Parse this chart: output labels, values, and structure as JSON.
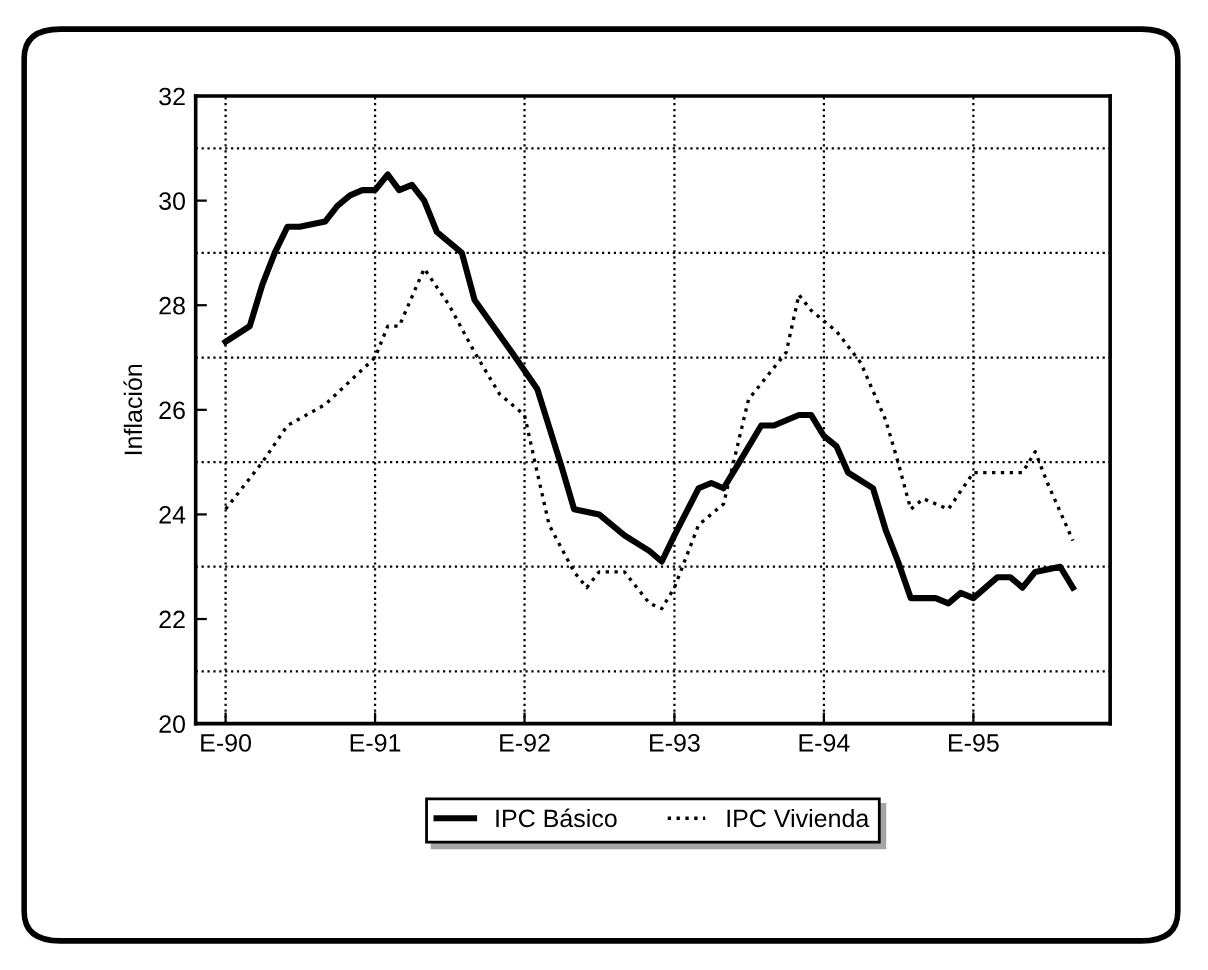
{
  "chart_data": {
    "type": "line",
    "ylabel": "Inflación",
    "xlim": [
      "1989-10-20",
      "1995-12-01"
    ],
    "ylim": [
      20,
      32
    ],
    "yticks": [
      20,
      22,
      24,
      26,
      28,
      30,
      32
    ],
    "xticks": [
      {
        "value": "1990-01",
        "label": "E-90"
      },
      {
        "value": "1991-01",
        "label": "E-91"
      },
      {
        "value": "1992-01",
        "label": "E-92"
      },
      {
        "value": "1993-01",
        "label": "E-93"
      },
      {
        "value": "1994-01",
        "label": "E-94"
      },
      {
        "value": "1995-01",
        "label": "E-95"
      }
    ],
    "grid": "x",
    "legend": "bottom",
    "ref_lines": [
      {
        "axis": "y",
        "value": 21,
        "line_style": "dotted",
        "color": "#000000"
      },
      {
        "axis": "y",
        "value": 23,
        "line_style": "dotted",
        "color": "#000000"
      },
      {
        "axis": "y",
        "value": 25,
        "line_style": "dotted",
        "color": "#000000"
      },
      {
        "axis": "y",
        "value": 27,
        "line_style": "dotted",
        "color": "#000000"
      },
      {
        "axis": "y",
        "value": 29,
        "line_style": "dotted",
        "color": "#000000"
      },
      {
        "axis": "y",
        "value": 31,
        "line_style": "dotted",
        "color": "#000000"
      }
    ],
    "series": [
      {
        "name": "IPC Básico",
        "color": "#000000",
        "line_style": "solid",
        "x": [
          "1990-01",
          "1990-03",
          "1990-04",
          "1990-05",
          "1990-06",
          "1990-07",
          "1990-09",
          "1990-10",
          "1990-11",
          "1990-12",
          "1991-01",
          "1991-02",
          "1991-03",
          "1991-04",
          "1991-05",
          "1991-06",
          "1991-08",
          "1991-09",
          "1991-12",
          "1992-02",
          "1992-04",
          "1992-05",
          "1992-07",
          "1992-09",
          "1992-11",
          "1992-12",
          "1993-01",
          "1993-03",
          "1993-04",
          "1993-05",
          "1993-06",
          "1993-08",
          "1993-09",
          "1993-11",
          "1993-12",
          "1994-01",
          "1994-02",
          "1994-03",
          "1994-05",
          "1994-06",
          "1994-07",
          "1994-08",
          "1994-10",
          "1994-11",
          "1994-12",
          "1995-01",
          "1995-03",
          "1995-04",
          "1995-05",
          "1995-06",
          "1995-08",
          "1995-09"
        ],
        "values": [
          27.3,
          27.6,
          28.4,
          29.0,
          29.5,
          29.5,
          29.6,
          29.9,
          30.1,
          30.2,
          30.2,
          30.5,
          30.2,
          30.3,
          30.0,
          29.4,
          29.0,
          28.1,
          27.1,
          26.4,
          24.9,
          24.1,
          24.0,
          23.6,
          23.3,
          23.1,
          23.6,
          24.5,
          24.6,
          24.5,
          24.9,
          25.7,
          25.7,
          25.9,
          25.9,
          25.5,
          25.3,
          24.8,
          24.5,
          23.7,
          23.1,
          22.4,
          22.4,
          22.3,
          22.5,
          22.4,
          22.8,
          22.8,
          22.6,
          22.9,
          23.0,
          22.6
        ]
      },
      {
        "name": "IPC Vivienda",
        "color": "#000000",
        "line_style": "dotted",
        "x": [
          "1990-01",
          "1990-04",
          "1990-06",
          "1990-09",
          "1991-01",
          "1991-02",
          "1991-03",
          "1991-05",
          "1991-07",
          "1991-09",
          "1991-11",
          "1992-01",
          "1992-02",
          "1992-03",
          "1992-05",
          "1992-06",
          "1992-07",
          "1992-09",
          "1992-11",
          "1992-12",
          "1993-01",
          "1993-03",
          "1993-05",
          "1993-07",
          "1993-10",
          "1993-11",
          "1993-12",
          "1994-02",
          "1994-04",
          "1994-06",
          "1994-07",
          "1994-08",
          "1994-09",
          "1994-11",
          "1995-01",
          "1995-05",
          "1995-06",
          "1995-07",
          "1995-09"
        ],
        "values": [
          24.1,
          25.0,
          25.7,
          26.1,
          27.0,
          27.6,
          27.6,
          28.7,
          28.0,
          27.1,
          26.3,
          25.9,
          24.8,
          23.8,
          22.9,
          22.6,
          22.9,
          22.9,
          22.3,
          22.2,
          22.6,
          23.8,
          24.2,
          26.2,
          27.1,
          28.2,
          27.9,
          27.5,
          26.9,
          25.8,
          25.0,
          24.1,
          24.3,
          24.1,
          24.8,
          24.8,
          25.2,
          24.6,
          23.5
        ]
      }
    ]
  }
}
